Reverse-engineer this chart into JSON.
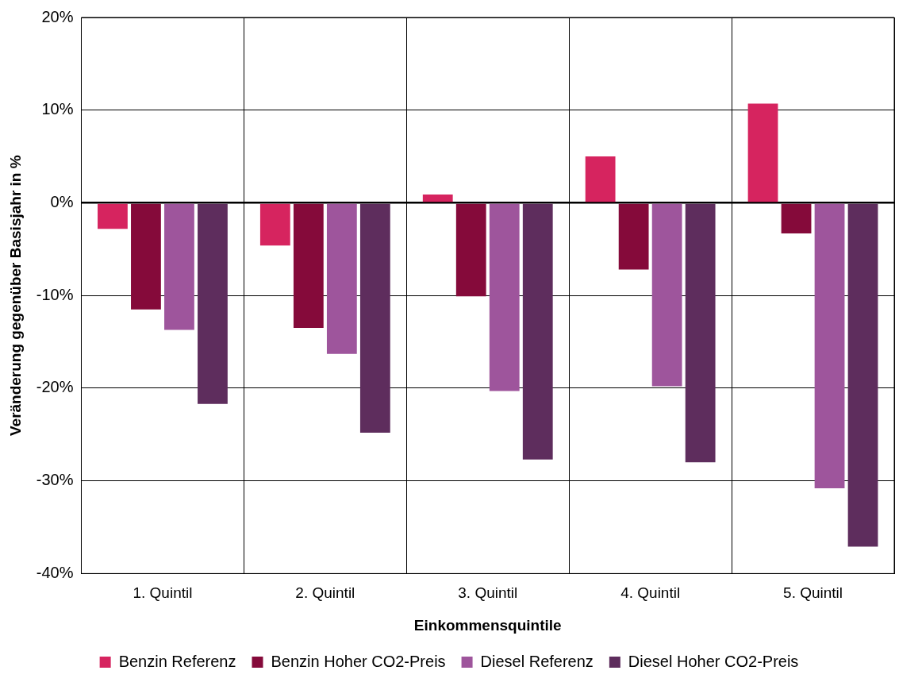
{
  "chart_data": {
    "type": "bar",
    "xlabel": "Einkommensquintile",
    "ylabel": "Veränderung gegenüber Basisjahr in %",
    "categories": [
      "1. Quintil",
      "2. Quintil",
      "3. Quintil",
      "4. Quintil",
      "5. Quintil"
    ],
    "series": [
      {
        "name": "Benzin Referenz",
        "color": "#d6245f",
        "values": [
          -2.8,
          -4.6,
          0.9,
          5.0,
          10.7
        ]
      },
      {
        "name": "Benzin Hoher CO2-Preis",
        "color": "#850a3a",
        "values": [
          -11.5,
          -13.5,
          -10.1,
          -7.2,
          -3.3
        ]
      },
      {
        "name": "Diesel Referenz",
        "color": "#9e559c",
        "values": [
          -13.7,
          -16.3,
          -20.3,
          -19.8,
          -30.8
        ]
      },
      {
        "name": "Diesel Hoher CO2-Preis",
        "color": "#5e2d5d",
        "values": [
          -21.7,
          -24.8,
          -27.7,
          -28.0,
          -37.1
        ]
      }
    ],
    "ylim": [
      -40,
      20
    ],
    "yticks": [
      {
        "value": -40,
        "label": "-40%"
      },
      {
        "value": -30,
        "label": "-30%"
      },
      {
        "value": -20,
        "label": "-20%"
      },
      {
        "value": -10,
        "label": "-10%"
      },
      {
        "value": 0,
        "label": "0%"
      },
      {
        "value": 10,
        "label": "10%"
      },
      {
        "value": 20,
        "label": "20%"
      }
    ],
    "grid": true,
    "legend": "bottom"
  }
}
